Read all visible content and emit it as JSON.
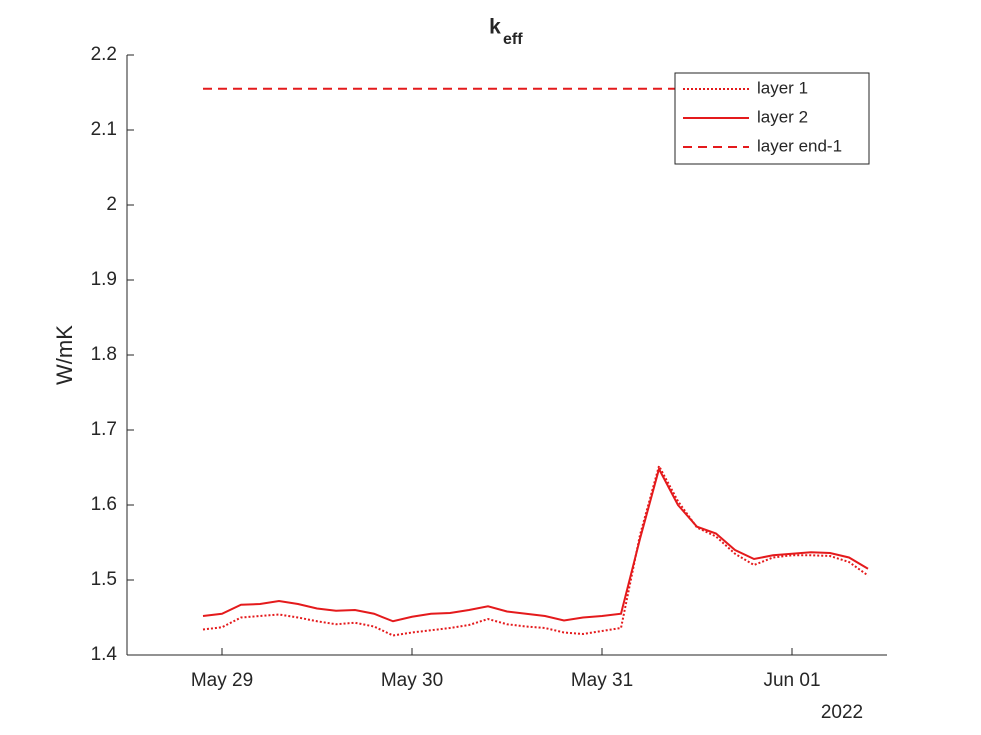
{
  "chart_data": {
    "type": "line",
    "title": "k",
    "title_subscript": "eff",
    "y_label": "W/mK",
    "x_secondary_label": "2022",
    "x": [
      28.9,
      29.0,
      29.1,
      29.2,
      29.3,
      29.4,
      29.5,
      29.6,
      29.7,
      29.8,
      29.9,
      30.0,
      30.1,
      30.2,
      30.3,
      30.4,
      30.5,
      30.6,
      30.7,
      30.8,
      30.9,
      31.0,
      31.1,
      31.2,
      31.3,
      31.4,
      31.5,
      31.6,
      31.7,
      31.8,
      31.9,
      32.0,
      32.1,
      32.2,
      32.3,
      32.4
    ],
    "series": [
      {
        "name": "layer 1",
        "color": "#e41a1c",
        "dash": "dotted",
        "values": [
          1.434,
          1.437,
          1.45,
          1.452,
          1.454,
          1.45,
          1.445,
          1.441,
          1.443,
          1.438,
          1.426,
          1.43,
          1.433,
          1.436,
          1.44,
          1.448,
          1.441,
          1.438,
          1.436,
          1.43,
          1.428,
          1.432,
          1.436,
          1.56,
          1.652,
          1.605,
          1.57,
          1.558,
          1.535,
          1.52,
          1.53,
          1.533,
          1.533,
          1.532,
          1.524,
          1.506
        ]
      },
      {
        "name": "layer 2",
        "color": "#e41a1c",
        "dash": "solid",
        "values": [
          1.452,
          1.455,
          1.467,
          1.468,
          1.472,
          1.468,
          1.462,
          1.459,
          1.46,
          1.455,
          1.445,
          1.451,
          1.455,
          1.456,
          1.46,
          1.465,
          1.458,
          1.455,
          1.452,
          1.446,
          1.45,
          1.452,
          1.455,
          1.555,
          1.648,
          1.6,
          1.571,
          1.562,
          1.54,
          1.528,
          1.533,
          1.535,
          1.537,
          1.536,
          1.53,
          1.515
        ]
      },
      {
        "name": "layer end-1",
        "color": "#e41a1c",
        "dash": "dashed",
        "values": [
          2.155,
          2.155,
          2.155,
          2.155,
          2.155,
          2.155,
          2.155,
          2.155,
          2.155,
          2.155,
          2.155,
          2.155,
          2.155,
          2.155,
          2.155,
          2.155,
          2.155,
          2.155,
          2.155,
          2.155,
          2.155,
          2.155,
          2.155,
          2.155,
          2.155,
          2.155,
          2.155,
          2.155,
          2.155,
          2.155,
          2.155,
          2.155,
          2.155,
          2.155,
          2.155,
          2.155
        ]
      }
    ],
    "xlim": [
      28.5,
      32.5
    ],
    "xticks": [
      {
        "value": 29,
        "label": "May 29"
      },
      {
        "value": 30,
        "label": "May 30"
      },
      {
        "value": 31,
        "label": "May 31"
      },
      {
        "value": 32,
        "label": "Jun 01"
      }
    ],
    "ylim": [
      1.4,
      2.2
    ],
    "yticks": [
      1.4,
      1.5,
      1.6,
      1.7,
      1.8,
      1.9,
      2,
      2.1,
      2.2
    ],
    "grid": false,
    "legend": "top-right"
  }
}
